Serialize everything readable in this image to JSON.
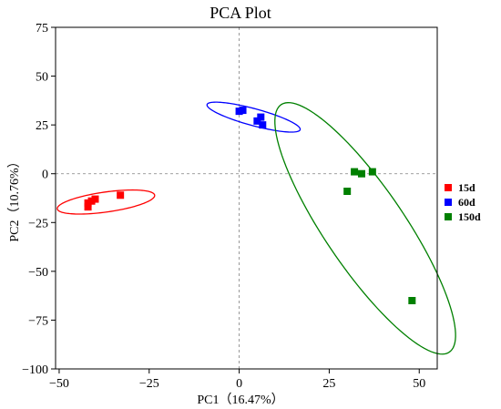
{
  "chart_data": {
    "type": "scatter",
    "title": "PCA Plot",
    "xlabel": "PC1（16.47%）",
    "ylabel": "PC2（10.76%）",
    "xlim": [
      -51,
      55
    ],
    "ylim": [
      -100,
      75
    ],
    "xticks": [
      -50,
      -25,
      0,
      25,
      50
    ],
    "yticks": [
      75,
      50,
      25,
      0,
      -25,
      -50,
      -75,
      -100
    ],
    "xtick_labels": [
      "−50",
      "−25",
      "0",
      "25",
      "50"
    ],
    "ytick_labels": [
      "75",
      "50",
      "25",
      "0",
      "−25",
      "−50",
      "−75",
      "−100"
    ],
    "reference_lines": {
      "x": 0,
      "y": 0,
      "style": "dashed"
    },
    "legend_position": "right",
    "series": [
      {
        "name": "15d",
        "color": "#ff0000",
        "points": [
          [
            -33,
            -11
          ],
          [
            -40,
            -13
          ],
          [
            -41,
            -14
          ],
          [
            -42,
            -15
          ],
          [
            -42,
            -17
          ]
        ],
        "ellipse": {
          "center": [
            -37,
            -14.5
          ],
          "semi_axis_major": 14,
          "semi_axis_minor": 5,
          "angle_deg": 16
        }
      },
      {
        "name": "60d",
        "color": "#0000ff",
        "points": [
          [
            0,
            32
          ],
          [
            1,
            32.5
          ],
          [
            5,
            27
          ],
          [
            6,
            29
          ],
          [
            6.5,
            25
          ]
        ],
        "ellipse": {
          "center": [
            4,
            29
          ],
          "semi_axis_major": 14.5,
          "semi_axis_minor": 4,
          "angle_deg": -28
        }
      },
      {
        "name": "150d",
        "color": "#008000",
        "points": [
          [
            30,
            -9
          ],
          [
            32,
            1
          ],
          [
            34,
            0
          ],
          [
            37,
            1
          ],
          [
            48,
            -65
          ]
        ],
        "ellipse": {
          "center": [
            35,
            -28
          ],
          "semi_axis_major": 68,
          "semi_axis_minor": 12.5,
          "angle_deg": -71
        }
      }
    ]
  }
}
